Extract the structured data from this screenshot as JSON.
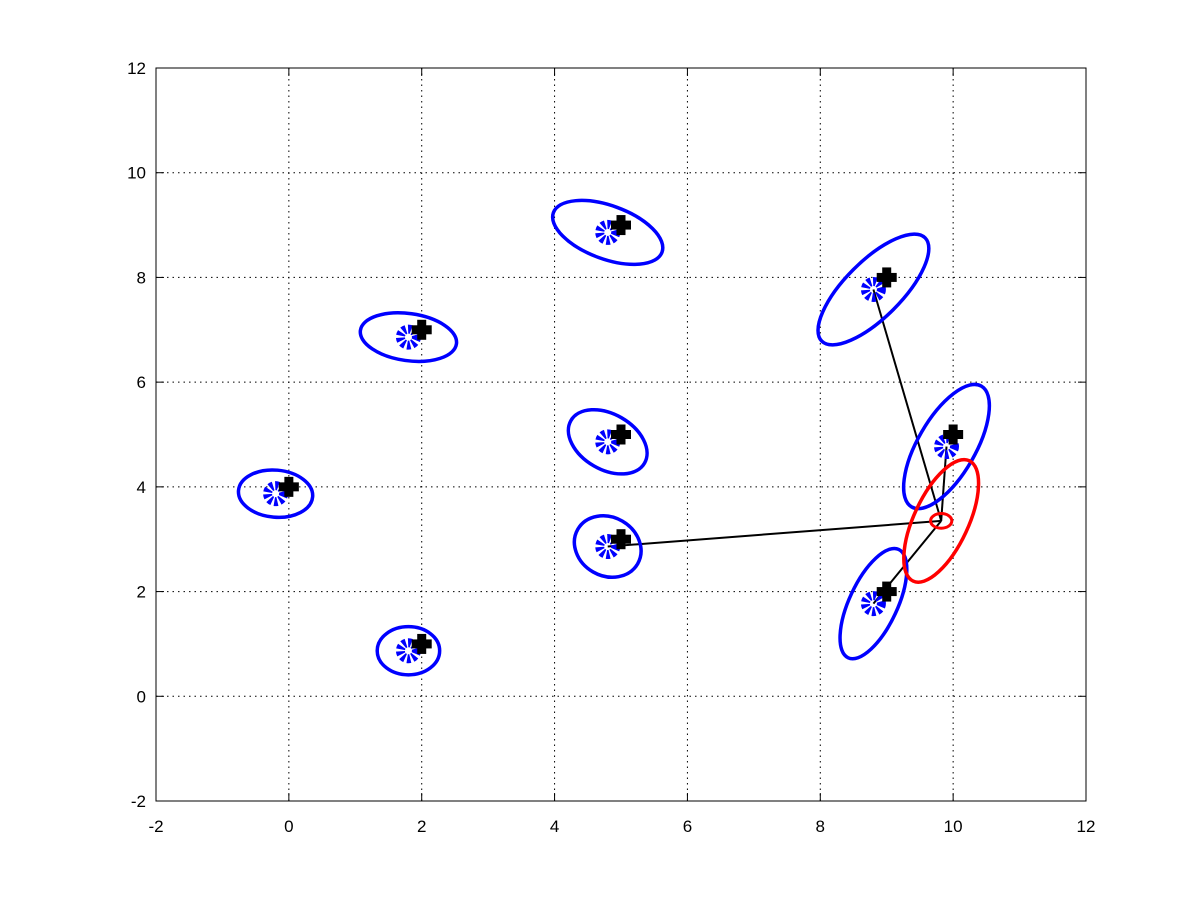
{
  "chart_data": {
    "type": "scatter",
    "title": "",
    "xlabel": "",
    "ylabel": "",
    "xlim": [
      -2,
      12
    ],
    "ylim": [
      -2,
      12
    ],
    "xticks": [
      -2,
      0,
      2,
      4,
      6,
      8,
      10,
      12
    ],
    "yticks": [
      -2,
      0,
      2,
      4,
      6,
      8,
      10,
      12
    ],
    "xtick_labels": [
      "-2",
      "0",
      "2",
      "4",
      "6",
      "8",
      "10",
      "12"
    ],
    "ytick_labels": [
      "-2",
      "0",
      "2",
      "4",
      "6",
      "8",
      "10",
      "12"
    ],
    "grid": true,
    "colors": {
      "landmark_estimate": "#0000ff",
      "true_landmark": "#000000",
      "robot": "#ff0000",
      "observation_line": "#000000",
      "grid": "#000000"
    },
    "true_landmarks": [
      {
        "x": 0,
        "y": 4
      },
      {
        "x": 2,
        "y": 1
      },
      {
        "x": 2,
        "y": 7
      },
      {
        "x": 5,
        "y": 3
      },
      {
        "x": 5,
        "y": 5
      },
      {
        "x": 5,
        "y": 9
      },
      {
        "x": 9,
        "y": 2
      },
      {
        "x": 9,
        "y": 8
      },
      {
        "x": 10,
        "y": 5
      }
    ],
    "landmark_estimates": [
      {
        "x": -0.2,
        "y": 3.87,
        "rx": 0.56,
        "ry": 0.45,
        "angle": -5
      },
      {
        "x": 1.8,
        "y": 0.87,
        "rx": 0.47,
        "ry": 0.46,
        "angle": 0
      },
      {
        "x": 1.8,
        "y": 6.86,
        "rx": 0.73,
        "ry": 0.45,
        "angle": -8
      },
      {
        "x": 4.8,
        "y": 2.86,
        "rx": 0.52,
        "ry": 0.56,
        "angle": -30
      },
      {
        "x": 4.8,
        "y": 4.86,
        "rx": 0.64,
        "ry": 0.53,
        "angle": -30
      },
      {
        "x": 4.8,
        "y": 8.86,
        "rx": 0.87,
        "ry": 0.51,
        "angle": -20
      },
      {
        "x": 8.8,
        "y": 1.77,
        "rx": 0.9,
        "ry": 0.46,
        "angle": 65
      },
      {
        "x": 8.8,
        "y": 7.77,
        "rx": 1.1,
        "ry": 0.54,
        "angle": 45
      },
      {
        "x": 9.9,
        "y": 4.77,
        "rx": 1.05,
        "ry": 0.55,
        "angle": 60
      }
    ],
    "robot": {
      "x": 9.82,
      "y": 3.35,
      "pose_ellipse": {
        "rx": 0.16,
        "ry": 0.14,
        "angle": 0
      },
      "uncertainty_ellipse": {
        "rx": 1.0,
        "ry": 0.52,
        "angle": 65
      }
    },
    "observations": [
      {
        "from": [
          9.82,
          3.35
        ],
        "to": [
          4.8,
          2.86
        ]
      },
      {
        "from": [
          9.82,
          3.35
        ],
        "to": [
          8.8,
          1.77
        ]
      },
      {
        "from": [
          9.82,
          3.35
        ],
        "to": [
          8.8,
          7.77
        ]
      },
      {
        "from": [
          9.82,
          3.35
        ],
        "to": [
          9.9,
          4.77
        ]
      }
    ]
  }
}
